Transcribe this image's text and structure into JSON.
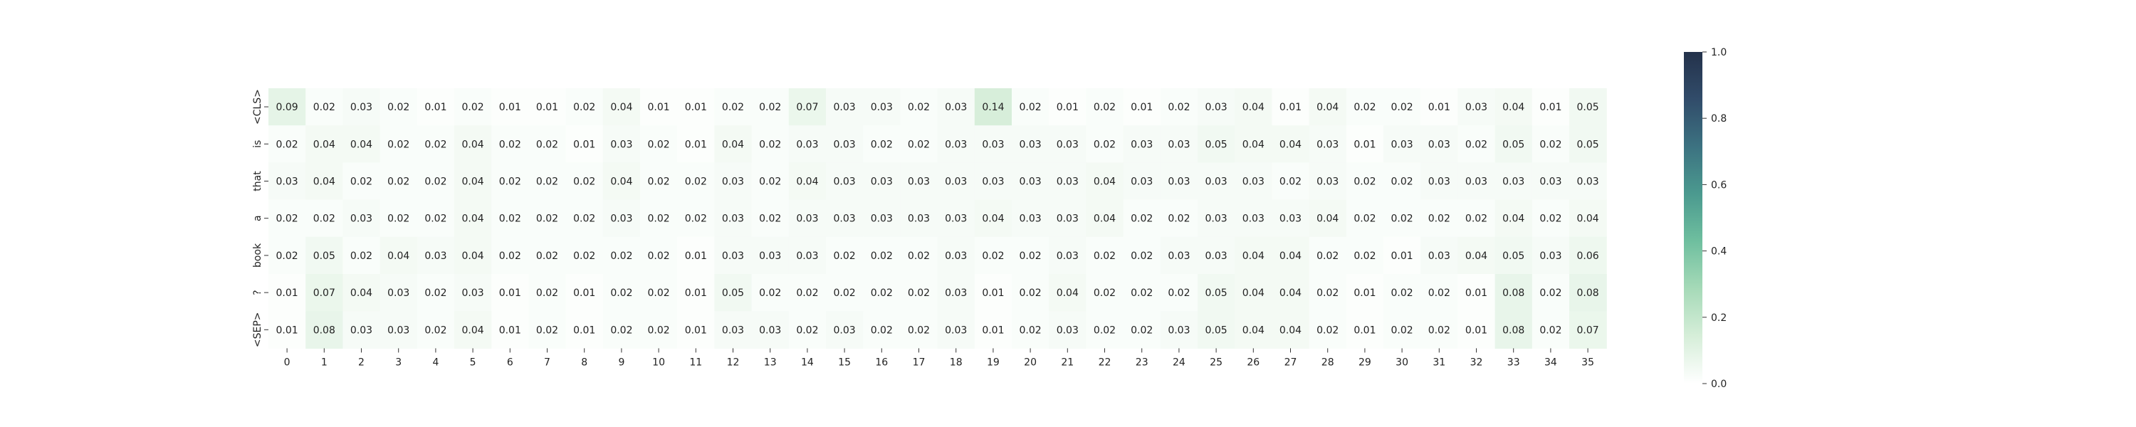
{
  "chart_data": {
    "type": "heatmap",
    "title": "",
    "xlabel": "",
    "ylabel": "",
    "x_labels": [
      "0",
      "1",
      "2",
      "3",
      "4",
      "5",
      "6",
      "7",
      "8",
      "9",
      "10",
      "11",
      "12",
      "13",
      "14",
      "15",
      "16",
      "17",
      "18",
      "19",
      "20",
      "21",
      "22",
      "23",
      "24",
      "25",
      "26",
      "27",
      "28",
      "29",
      "30",
      "31",
      "32",
      "33",
      "34",
      "35"
    ],
    "y_labels": [
      "<CLS>",
      "is",
      "that",
      "a",
      "book",
      "?",
      "<SEP>"
    ],
    "values": [
      [
        0.09,
        0.02,
        0.03,
        0.02,
        0.01,
        0.02,
        0.01,
        0.01,
        0.02,
        0.04,
        0.01,
        0.01,
        0.02,
        0.02,
        0.07,
        0.03,
        0.03,
        0.02,
        0.03,
        0.14,
        0.02,
        0.01,
        0.02,
        0.01,
        0.02,
        0.03,
        0.04,
        0.01,
        0.04,
        0.02,
        0.02,
        0.01,
        0.03,
        0.04,
        0.01,
        0.05
      ],
      [
        0.02,
        0.04,
        0.04,
        0.02,
        0.02,
        0.04,
        0.02,
        0.02,
        0.01,
        0.03,
        0.02,
        0.01,
        0.04,
        0.02,
        0.03,
        0.03,
        0.02,
        0.02,
        0.03,
        0.03,
        0.03,
        0.03,
        0.02,
        0.03,
        0.03,
        0.05,
        0.04,
        0.04,
        0.03,
        0.01,
        0.03,
        0.03,
        0.02,
        0.05,
        0.02,
        0.05
      ],
      [
        0.03,
        0.04,
        0.02,
        0.02,
        0.02,
        0.04,
        0.02,
        0.02,
        0.02,
        0.04,
        0.02,
        0.02,
        0.03,
        0.02,
        0.04,
        0.03,
        0.03,
        0.03,
        0.03,
        0.03,
        0.03,
        0.03,
        0.04,
        0.03,
        0.03,
        0.03,
        0.03,
        0.02,
        0.03,
        0.02,
        0.02,
        0.03,
        0.03,
        0.03,
        0.03,
        0.03
      ],
      [
        0.02,
        0.02,
        0.03,
        0.02,
        0.02,
        0.04,
        0.02,
        0.02,
        0.02,
        0.03,
        0.02,
        0.02,
        0.03,
        0.02,
        0.03,
        0.03,
        0.03,
        0.03,
        0.03,
        0.04,
        0.03,
        0.03,
        0.04,
        0.02,
        0.02,
        0.03,
        0.03,
        0.03,
        0.04,
        0.02,
        0.02,
        0.02,
        0.02,
        0.04,
        0.02,
        0.04
      ],
      [
        0.02,
        0.05,
        0.02,
        0.04,
        0.03,
        0.04,
        0.02,
        0.02,
        0.02,
        0.02,
        0.02,
        0.01,
        0.03,
        0.03,
        0.03,
        0.02,
        0.02,
        0.02,
        0.03,
        0.02,
        0.02,
        0.03,
        0.02,
        0.02,
        0.03,
        0.03,
        0.04,
        0.04,
        0.02,
        0.02,
        0.01,
        0.03,
        0.04,
        0.05,
        0.03,
        0.06
      ],
      [
        0.01,
        0.07,
        0.04,
        0.03,
        0.02,
        0.03,
        0.01,
        0.02,
        0.01,
        0.02,
        0.02,
        0.01,
        0.05,
        0.02,
        0.02,
        0.02,
        0.02,
        0.02,
        0.03,
        0.01,
        0.02,
        0.04,
        0.02,
        0.02,
        0.02,
        0.05,
        0.04,
        0.04,
        0.02,
        0.01,
        0.02,
        0.02,
        0.01,
        0.08,
        0.02,
        0.08
      ],
      [
        0.01,
        0.08,
        0.03,
        0.03,
        0.02,
        0.04,
        0.01,
        0.02,
        0.01,
        0.02,
        0.02,
        0.01,
        0.03,
        0.03,
        0.02,
        0.03,
        0.02,
        0.02,
        0.03,
        0.01,
        0.02,
        0.03,
        0.02,
        0.02,
        0.03,
        0.05,
        0.04,
        0.04,
        0.02,
        0.01,
        0.02,
        0.02,
        0.01,
        0.08,
        0.02,
        0.07
      ]
    ],
    "value_labels": [
      [
        "0.09",
        "0.02",
        "0.03",
        "0.02",
        "0.01",
        "0.02",
        "0.01",
        "0.01",
        "0.02",
        "0.04",
        "0.01",
        "0.01",
        "0.02",
        "0.02",
        "0.07",
        "0.03",
        "0.03",
        "0.02",
        "0.03",
        "0.14",
        "0.02",
        "0.01",
        "0.02",
        "0.01",
        "0.02",
        "0.03",
        "0.04",
        "0.01",
        "0.04",
        "0.02",
        "0.02",
        "0.01",
        "0.03",
        "0.04",
        "0.01",
        "0.05"
      ],
      [
        "0.02",
        "0.04",
        "0.04",
        "0.02",
        "0.02",
        "0.04",
        "0.02",
        "0.02",
        "0.01",
        "0.03",
        "0.02",
        "0.01",
        "0.04",
        "0.02",
        "0.03",
        "0.03",
        "0.02",
        "0.02",
        "0.03",
        "0.03",
        "0.03",
        "0.03",
        "0.02",
        "0.03",
        "0.03",
        "0.05",
        "0.04",
        "0.04",
        "0.03",
        "0.01",
        "0.03",
        "0.03",
        "0.02",
        "0.05",
        "0.02",
        "0.05"
      ],
      [
        "0.03",
        "0.04",
        "0.02",
        "0.02",
        "0.02",
        "0.04",
        "0.02",
        "0.02",
        "0.02",
        "0.04",
        "0.02",
        "0.02",
        "0.03",
        "0.02",
        "0.04",
        "0.03",
        "0.03",
        "0.03",
        "0.03",
        "0.03",
        "0.03",
        "0.03",
        "0.04",
        "0.03",
        "0.03",
        "0.03",
        "0.03",
        "0.02",
        "0.03",
        "0.02",
        "0.02",
        "0.03",
        "0.03",
        "0.03",
        "0.03",
        "0.03"
      ],
      [
        "0.02",
        "0.02",
        "0.03",
        "0.02",
        "0.02",
        "0.04",
        "0.02",
        "0.02",
        "0.02",
        "0.03",
        "0.02",
        "0.02",
        "0.03",
        "0.02",
        "0.03",
        "0.03",
        "0.03",
        "0.03",
        "0.03",
        "0.04",
        "0.03",
        "0.03",
        "0.04",
        "0.02",
        "0.02",
        "0.03",
        "0.03",
        "0.03",
        "0.04",
        "0.02",
        "0.02",
        "0.02",
        "0.02",
        "0.04",
        "0.02",
        "0.04"
      ],
      [
        "0.02",
        "0.05",
        "0.02",
        "0.04",
        "0.03",
        "0.04",
        "0.02",
        "0.02",
        "0.02",
        "0.02",
        "0.02",
        "0.01",
        "0.03",
        "0.03",
        "0.03",
        "0.02",
        "0.02",
        "0.02",
        "0.03",
        "0.02",
        "0.02",
        "0.03",
        "0.02",
        "0.02",
        "0.03",
        "0.03",
        "0.04",
        "0.04",
        "0.02",
        "0.02",
        "0.01",
        "0.03",
        "0.04",
        "0.05",
        "0.03",
        "0.06"
      ],
      [
        "0.01",
        "0.07",
        "0.04",
        "0.03",
        "0.02",
        "0.03",
        "0.01",
        "0.02",
        "0.01",
        "0.02",
        "0.02",
        "0.01",
        "0.05",
        "0.02",
        "0.02",
        "0.02",
        "0.02",
        "0.02",
        "0.03",
        "0.01",
        "0.02",
        "0.04",
        "0.02",
        "0.02",
        "0.02",
        "0.05",
        "0.04",
        "0.04",
        "0.02",
        "0.01",
        "0.02",
        "0.02",
        "0.01",
        "0.08",
        "0.02",
        "0.08"
      ],
      [
        "0.01",
        "0.08",
        "0.03",
        "0.03",
        "0.02",
        "0.04",
        "0.01",
        "0.02",
        "0.01",
        "0.02",
        "0.02",
        "0.01",
        "0.03",
        "0.03",
        "0.02",
        "0.03",
        "0.02",
        "0.02",
        "0.03",
        "0.01",
        "0.02",
        "0.03",
        "0.02",
        "0.02",
        "0.03",
        "0.05",
        "0.04",
        "0.04",
        "0.02",
        "0.01",
        "0.02",
        "0.02",
        "0.01",
        "0.08",
        "0.02",
        "0.07"
      ]
    ],
    "colorbar": {
      "vmin": 0.0,
      "vmax": 1.0,
      "ticks": [
        0.0,
        0.2,
        0.4,
        0.6,
        0.8,
        1.0
      ],
      "tick_labels": [
        "0.0",
        "0.2",
        "0.4",
        "0.6",
        "0.8",
        "1.0"
      ]
    },
    "colormap": [
      "#ffffff",
      "#d6eed9",
      "#a6dab8",
      "#6fbf9f",
      "#4b9a8f",
      "#3c7281",
      "#314c6a",
      "#24324b"
    ]
  }
}
